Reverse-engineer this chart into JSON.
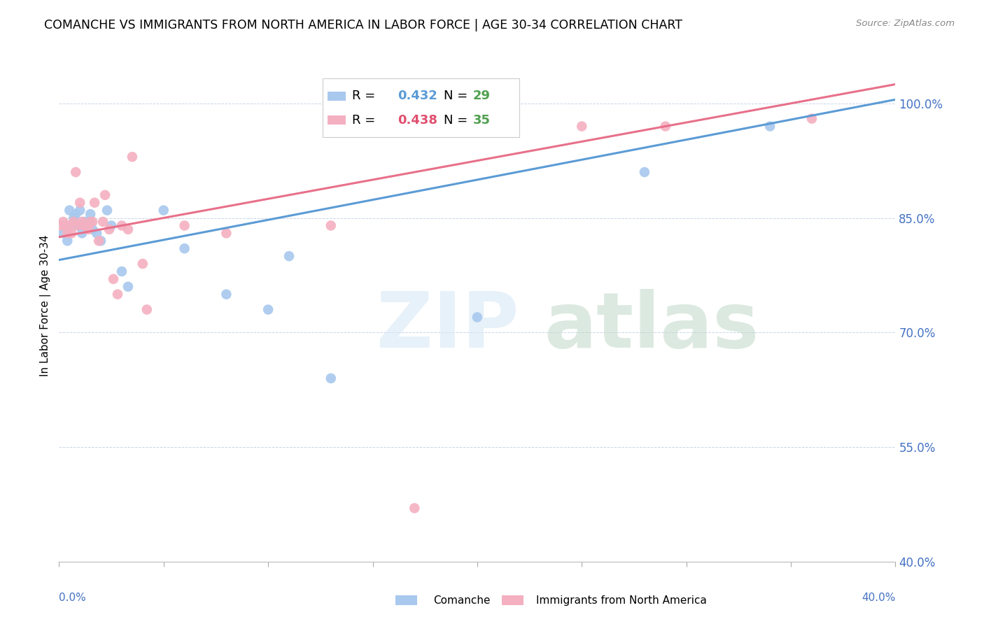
{
  "title": "COMANCHE VS IMMIGRANTS FROM NORTH AMERICA IN LABOR FORCE | AGE 30-34 CORRELATION CHART",
  "source": "Source: ZipAtlas.com",
  "ylabel": "In Labor Force | Age 30-34",
  "xmin": 0.0,
  "xmax": 0.4,
  "ymin": 0.4,
  "ymax": 1.07,
  "yticks": [
    0.4,
    0.55,
    0.7,
    0.85,
    1.0
  ],
  "ytick_labels": [
    "40.0%",
    "55.0%",
    "70.0%",
    "85.0%",
    "100.0%"
  ],
  "blue_R": 0.432,
  "blue_N": 29,
  "pink_R": 0.438,
  "pink_N": 35,
  "blue_color": "#A8C8EE",
  "pink_color": "#F4B0C0",
  "blue_line_color": "#5B9BD5",
  "pink_line_color": "#E8708A",
  "legend_R_color_blue": "#5B9BD5",
  "legend_R_color_pink": "#E05070",
  "legend_N_color": "#50A050",
  "blue_x": [
    0.002,
    0.004,
    0.005,
    0.006,
    0.007,
    0.008,
    0.009,
    0.01,
    0.011,
    0.012,
    0.013,
    0.014,
    0.015,
    0.016,
    0.018,
    0.02,
    0.023,
    0.025,
    0.03,
    0.033,
    0.05,
    0.06,
    0.08,
    0.1,
    0.11,
    0.13,
    0.2,
    0.28,
    0.34
  ],
  "blue_y": [
    0.83,
    0.82,
    0.86,
    0.84,
    0.85,
    0.855,
    0.84,
    0.86,
    0.83,
    0.845,
    0.84,
    0.845,
    0.855,
    0.835,
    0.83,
    0.82,
    0.86,
    0.84,
    0.78,
    0.76,
    0.86,
    0.81,
    0.75,
    0.73,
    0.8,
    0.64,
    0.72,
    0.91,
    0.97
  ],
  "pink_x": [
    0.001,
    0.002,
    0.003,
    0.004,
    0.005,
    0.006,
    0.007,
    0.008,
    0.009,
    0.01,
    0.011,
    0.012,
    0.013,
    0.014,
    0.015,
    0.016,
    0.017,
    0.019,
    0.021,
    0.022,
    0.024,
    0.026,
    0.028,
    0.03,
    0.033,
    0.035,
    0.04,
    0.042,
    0.06,
    0.08,
    0.13,
    0.17,
    0.25,
    0.29,
    0.36
  ],
  "pink_y": [
    0.84,
    0.845,
    0.84,
    0.83,
    0.84,
    0.83,
    0.845,
    0.91,
    0.84,
    0.87,
    0.845,
    0.84,
    0.84,
    0.835,
    0.845,
    0.845,
    0.87,
    0.82,
    0.845,
    0.88,
    0.835,
    0.77,
    0.75,
    0.84,
    0.835,
    0.93,
    0.79,
    0.73,
    0.84,
    0.83,
    0.84,
    0.47,
    0.97,
    0.97,
    0.98
  ],
  "blue_trend_x0": 0.0,
  "blue_trend_y0": 0.795,
  "blue_trend_x1": 0.4,
  "blue_trend_y1": 1.005,
  "pink_trend_x0": 0.0,
  "pink_trend_y0": 0.825,
  "pink_trend_x1": 0.4,
  "pink_trend_y1": 1.025
}
